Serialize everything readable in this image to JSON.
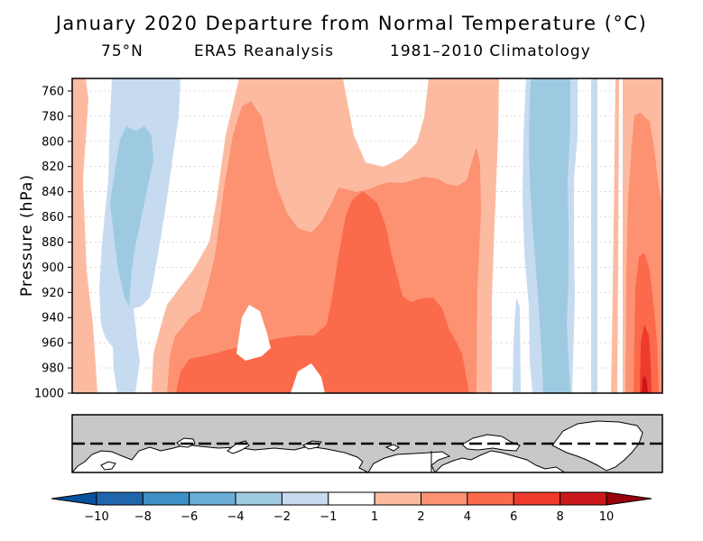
{
  "title": "January 2020 Departure from Normal Temperature (°C)",
  "subtitle": {
    "latitude": "75°N",
    "source": "ERA5 Reanalysis",
    "climatology": "1981–2010 Climatology"
  },
  "chart_data": {
    "type": "heatmap",
    "title": "January 2020 Departure from Normal Temperature (°C)",
    "ylabel": "Pressure (hPa)",
    "xlabel": "",
    "y_axis": {
      "ticks": [
        760,
        780,
        800,
        820,
        840,
        860,
        880,
        900,
        920,
        940,
        960,
        980,
        1000
      ],
      "range": [
        750,
        1000
      ],
      "inverted": true
    },
    "grid": true,
    "colorbar": {
      "orientation": "horizontal",
      "position": "bottom",
      "boundaries": [
        -10,
        -8,
        -6,
        -4,
        -2,
        -1,
        1,
        2,
        4,
        6,
        8,
        10
      ],
      "tick_labels": [
        "−10",
        "−8",
        "−6",
        "−4",
        "−2",
        "−1",
        "1",
        "2",
        "4",
        "6",
        "8",
        "10"
      ],
      "colors": [
        "#2166ac",
        "#3d8fc5",
        "#6aaed6",
        "#9ecae1",
        "#c6dbef",
        "#ffffff",
        "#fcbba1",
        "#fc9272",
        "#fb6a4a",
        "#ef3b2c",
        "#cb181d"
      ],
      "extend_low_color": "#08519c",
      "extend_high_color": "#99000d",
      "extend": "both"
    },
    "levels": {
      "above": [
        {
          "anomaly": 1,
          "color": "#fcbba1"
        },
        {
          "anomaly": 2,
          "color": "#fc9272"
        },
        {
          "anomaly": 4,
          "color": "#fb6a4a"
        },
        {
          "anomaly": 6,
          "color": "#ef3b2c"
        },
        {
          "anomaly": 8,
          "color": "#cb181d"
        }
      ],
      "below": [
        {
          "anomaly": -1,
          "color": "#c6dbef"
        },
        {
          "anomaly": -2,
          "color": "#9ecae1"
        }
      ]
    },
    "location_map": {
      "latitude_line": "75°N",
      "line_style": "dashed"
    }
  }
}
